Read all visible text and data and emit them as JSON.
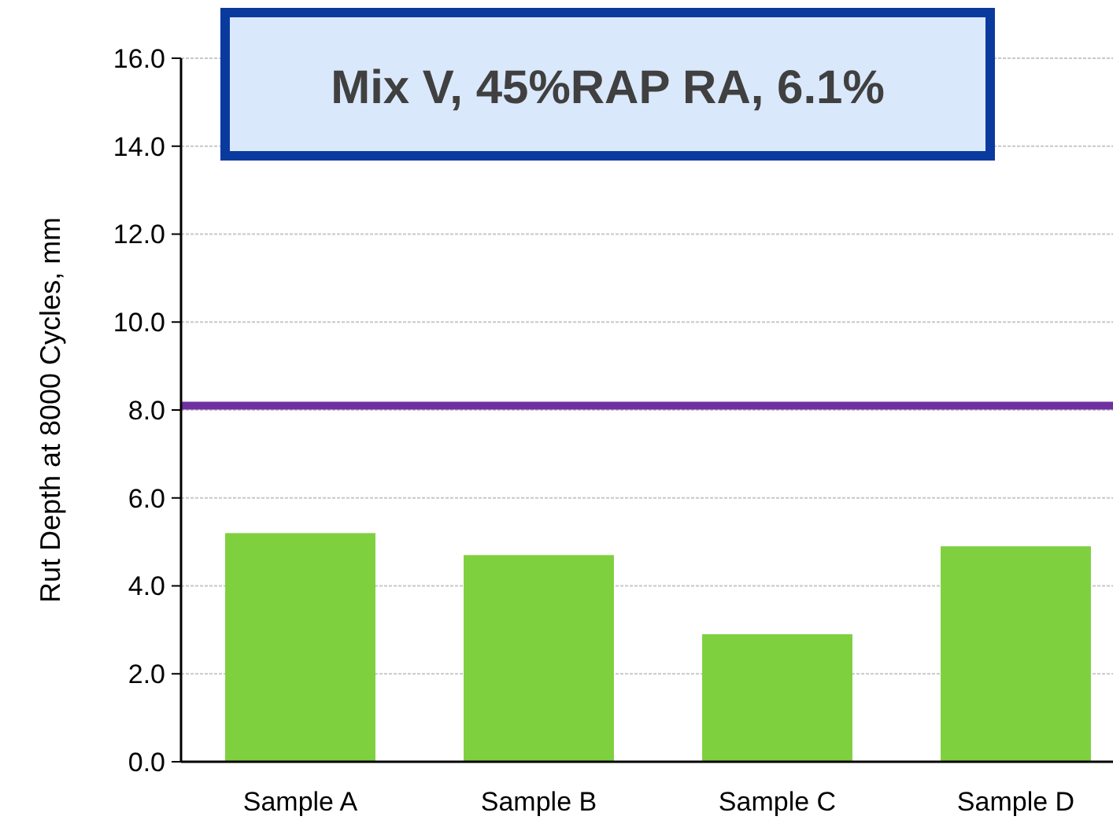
{
  "chart_data": {
    "type": "bar",
    "title": "Mix V, 45%RAP RA, 6.1%",
    "ylabel": "Rut Depth at 8000 Cycles, mm",
    "categories": [
      "Sample A",
      "Sample B",
      "Sample C",
      "Sample D"
    ],
    "values": [
      5.2,
      4.7,
      2.9,
      4.9
    ],
    "color": "#7ed03f",
    "ylim": [
      0,
      16
    ],
    "yticks": [
      {
        "value": 0,
        "label": "0.0"
      },
      {
        "value": 2,
        "label": "2.0"
      },
      {
        "value": 4,
        "label": "4.0"
      },
      {
        "value": 6,
        "label": "6.0"
      },
      {
        "value": 8,
        "label": "8.0"
      },
      {
        "value": 10,
        "label": "10.0"
      },
      {
        "value": 12,
        "label": "12.0"
      },
      {
        "value": 14,
        "label": "14.0"
      },
      {
        "value": 16,
        "label": "16.0"
      }
    ],
    "ref_lines": [
      {
        "axis": "y",
        "value": 8.1,
        "color": "#7030a0"
      }
    ],
    "grid": "y"
  }
}
